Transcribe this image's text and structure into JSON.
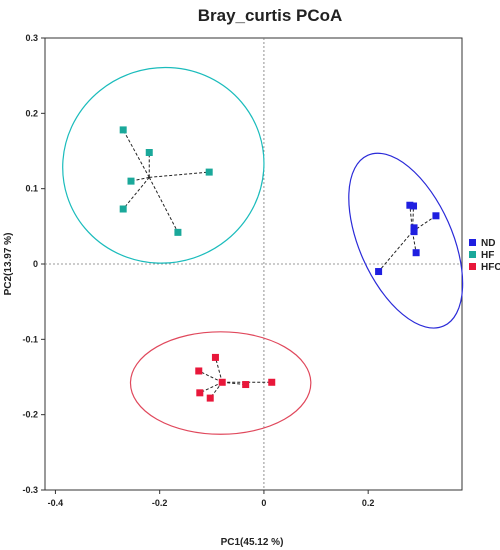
{
  "chart_data": {
    "type": "scatter",
    "title": "Bray_curtis PCoA",
    "xlabel": "PC1(45.12 %)",
    "ylabel": "PC2(13.97 %)",
    "xlim": [
      -0.42,
      0.38
    ],
    "ylim": [
      -0.3,
      0.3
    ],
    "xticks": [
      -0.4,
      -0.2,
      0,
      0.2
    ],
    "xtick_labels": [
      "-0.4",
      "-0.2",
      "0",
      "0.2"
    ],
    "yticks": [
      0.3,
      0.2,
      0.1,
      0,
      -0.1,
      -0.2,
      -0.3
    ],
    "ytick_labels": [
      "0.3",
      "0.2",
      "0.1",
      "0",
      "-0.1",
      "-0.2",
      "-0.3"
    ],
    "grid": false,
    "zero_lines": true,
    "legend_position": "right",
    "series": [
      {
        "name": "ND",
        "color": "#1f1fe0",
        "ellipse_color": "#2a2ad8",
        "centroid": [
          0.285,
          0.043
        ],
        "ellipse": {
          "cx": 0.272,
          "cy": 0.031,
          "rx": 0.089,
          "ry": 0.124,
          "angle": -24
        },
        "points": [
          [
            0.22,
            -0.01
          ],
          [
            0.28,
            0.078
          ],
          [
            0.287,
            0.077
          ],
          [
            0.288,
            0.048
          ],
          [
            0.288,
            0.043
          ],
          [
            0.292,
            0.015
          ],
          [
            0.33,
            0.064
          ]
        ]
      },
      {
        "name": "HF",
        "color": "#1aa89a",
        "ellipse_color": "#1bbcbc",
        "centroid": [
          -0.22,
          0.115
        ],
        "ellipse": {
          "cx": -0.193,
          "cy": 0.131,
          "rx": 0.187,
          "ry": 0.134,
          "angle": 72
        },
        "points": [
          [
            -0.27,
            0.178
          ],
          [
            -0.22,
            0.148
          ],
          [
            -0.255,
            0.11
          ],
          [
            -0.27,
            0.073
          ],
          [
            -0.165,
            0.042
          ],
          [
            -0.105,
            0.122
          ]
        ]
      },
      {
        "name": "HFC",
        "color": "#e8173a",
        "ellipse_color": "#e0485c",
        "centroid": [
          -0.08,
          -0.157
        ],
        "ellipse": {
          "cx": -0.083,
          "cy": -0.158,
          "rx": 0.173,
          "ry": 0.068,
          "angle": 0
        },
        "points": [
          [
            -0.125,
            -0.142
          ],
          [
            -0.093,
            -0.124
          ],
          [
            -0.123,
            -0.171
          ],
          [
            -0.103,
            -0.178
          ],
          [
            -0.08,
            -0.157
          ],
          [
            -0.035,
            -0.16
          ],
          [
            0.015,
            -0.157
          ]
        ]
      }
    ]
  }
}
